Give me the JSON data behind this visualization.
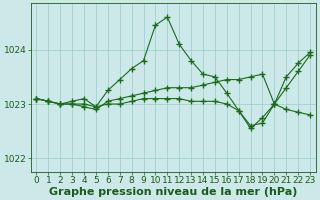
{
  "title": "Graphe pression niveau de la mer (hPa)",
  "series": [
    [
      1023.1,
      1023.05,
      1023.0,
      1023.0,
      1022.95,
      1022.9,
      1023.05,
      1023.1,
      1023.15,
      1023.2,
      1023.25,
      1023.3,
      1023.3,
      1023.3,
      1023.35,
      1023.4,
      1023.45,
      1023.45,
      1023.5,
      1023.55,
      1023.0,
      1023.5,
      1023.75,
      1023.95
    ],
    [
      1023.1,
      1023.05,
      1023.0,
      1023.05,
      1023.1,
      1022.95,
      1023.25,
      1023.45,
      1023.65,
      1023.8,
      1024.45,
      1024.6,
      1024.1,
      1023.8,
      1023.55,
      1023.5,
      1023.2,
      1022.88,
      1022.55,
      1022.75,
      1023.0,
      1023.3,
      1023.6,
      1023.9
    ],
    [
      1023.1,
      1023.05,
      1023.0,
      1023.0,
      1023.0,
      1022.95,
      1023.0,
      1023.0,
      1023.05,
      1023.1,
      1023.1,
      1023.1,
      1023.1,
      1023.05,
      1023.05,
      1023.05,
      1023.0,
      1022.88,
      1022.6,
      1022.65,
      1023.0,
      1022.9,
      1022.85,
      1022.8
    ]
  ],
  "x_values": [
    0,
    1,
    2,
    3,
    4,
    5,
    6,
    7,
    8,
    9,
    10,
    11,
    12,
    13,
    14,
    15,
    16,
    17,
    18,
    19,
    20,
    21,
    22,
    23
  ],
  "line_color": "#1a6b1a",
  "marker": "+",
  "bg_color": "#cce8e8",
  "grid_color": "#99cccc",
  "text_color": "#1a5c1a",
  "ylim": [
    1021.75,
    1024.85
  ],
  "yticks": [
    1022,
    1023,
    1024
  ],
  "xticks": [
    0,
    1,
    2,
    3,
    4,
    5,
    6,
    7,
    8,
    9,
    10,
    11,
    12,
    13,
    14,
    15,
    16,
    17,
    18,
    19,
    20,
    21,
    22,
    23
  ],
  "title_fontsize": 8.0,
  "tick_fontsize": 6.5
}
